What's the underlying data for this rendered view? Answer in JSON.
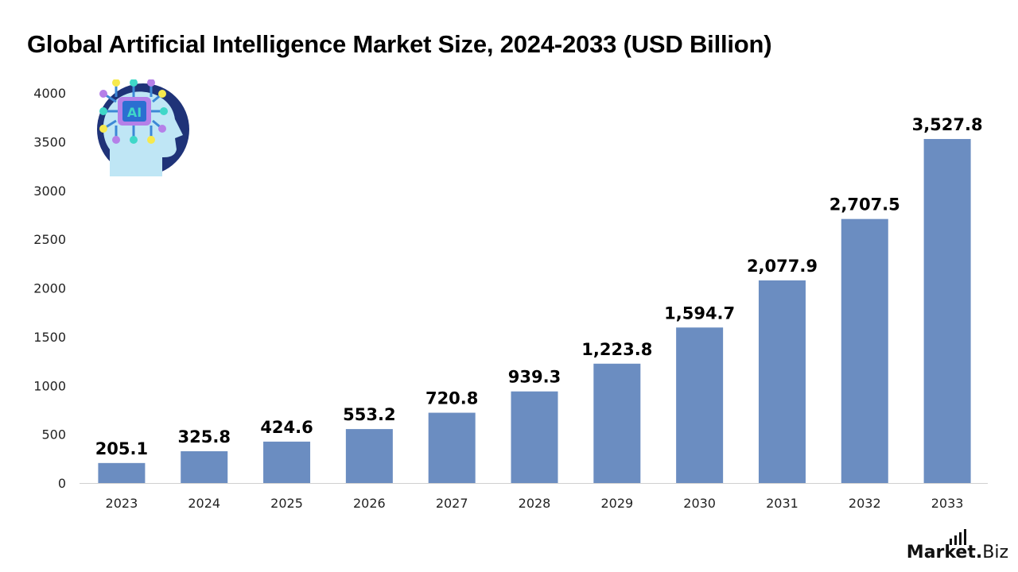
{
  "title": "Global Artificial Intelligence Market Size, 2024-2033 (USD Billion)",
  "brand": {
    "main": "Market",
    "dot": ".",
    "sub": "Biz"
  },
  "logo_text": "AI",
  "colors": {
    "bar": "#6b8dc1",
    "axis": "#d0d0d0",
    "logo_circle": "#1f3378",
    "logo_head": "#bfe6f5"
  },
  "chart_data": {
    "type": "bar",
    "title": "Global Artificial Intelligence Market Size, 2024-2033 (USD Billion)",
    "categories": [
      "2023",
      "2024",
      "2025",
      "2026",
      "2027",
      "2028",
      "2029",
      "2030",
      "2031",
      "2032",
      "2033"
    ],
    "values": [
      205.1,
      325.8,
      424.6,
      553.2,
      720.8,
      939.3,
      1223.8,
      1594.7,
      2077.9,
      2707.5,
      3527.8
    ],
    "value_labels": [
      "205.1",
      "325.8",
      "424.6",
      "553.2",
      "720.8",
      "939.3",
      "1,223.8",
      "1,594.7",
      "2,077.9",
      "2,707.5",
      "3,527.8"
    ],
    "yticks": [
      0,
      500,
      1000,
      1500,
      2000,
      2500,
      3000,
      3500,
      4000
    ],
    "ylim": [
      0,
      4000
    ],
    "xlabel": "",
    "ylabel": "",
    "grid": false,
    "legend": "none"
  }
}
